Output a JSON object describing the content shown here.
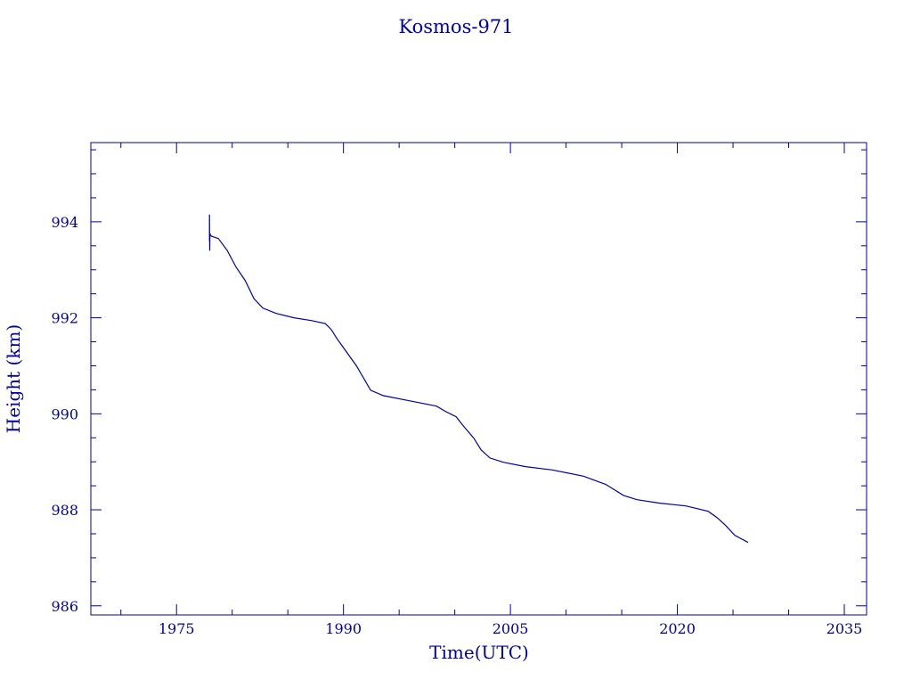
{
  "chart_data": {
    "type": "line",
    "title": "Kosmos-971",
    "xlabel": "Time(UTC)",
    "ylabel": "Height (km)",
    "xlim": [
      1967.3,
      2037.0
    ],
    "ylim": [
      985.81,
      995.65
    ],
    "xticks": [
      1975,
      1990,
      2005,
      2020,
      2035
    ],
    "xtick_labels": [
      "1975",
      "1990",
      "2005",
      "2020",
      "2035"
    ],
    "xminor_step": 5,
    "yticks": [
      986,
      988,
      990,
      992,
      994
    ],
    "ytick_labels": [
      "986",
      "988",
      "990",
      "992",
      "994"
    ],
    "yminor_step": 0.5,
    "grid": false,
    "color": "#0000a0",
    "series": [
      {
        "name": "Kosmos-971",
        "x": [
          1977.96,
          1977.96,
          1977.98,
          1978.0,
          1978.12,
          1978.76,
          1979.56,
          1980.36,
          1981.16,
          1981.96,
          1982.76,
          1983.96,
          1985.56,
          1987.16,
          1988.36,
          1988.92,
          1989.4,
          1991.16,
          1992.44,
          1993.56,
          1995.96,
          1998.36,
          1999.16,
          2000.12,
          2000.76,
          2001.72,
          2002.36,
          2003.16,
          2004.36,
          2006.36,
          2008.76,
          2011.56,
          2013.56,
          2015.16,
          2016.36,
          2018.36,
          2020.76,
          2022.76,
          2023.56,
          2024.36,
          2025.16,
          2026.36
        ],
        "y": [
          993.6,
          994.15,
          993.4,
          993.75,
          993.7,
          993.65,
          993.4,
          993.05,
          992.78,
          992.4,
          992.2,
          992.09,
          992.0,
          991.94,
          991.88,
          991.75,
          991.57,
          991.0,
          990.49,
          990.38,
          990.27,
          990.16,
          990.05,
          989.94,
          989.75,
          989.49,
          989.25,
          989.08,
          988.99,
          988.9,
          988.83,
          988.7,
          988.53,
          988.3,
          988.21,
          988.14,
          988.08,
          987.97,
          987.84,
          987.67,
          987.47,
          987.32
        ]
      }
    ]
  }
}
